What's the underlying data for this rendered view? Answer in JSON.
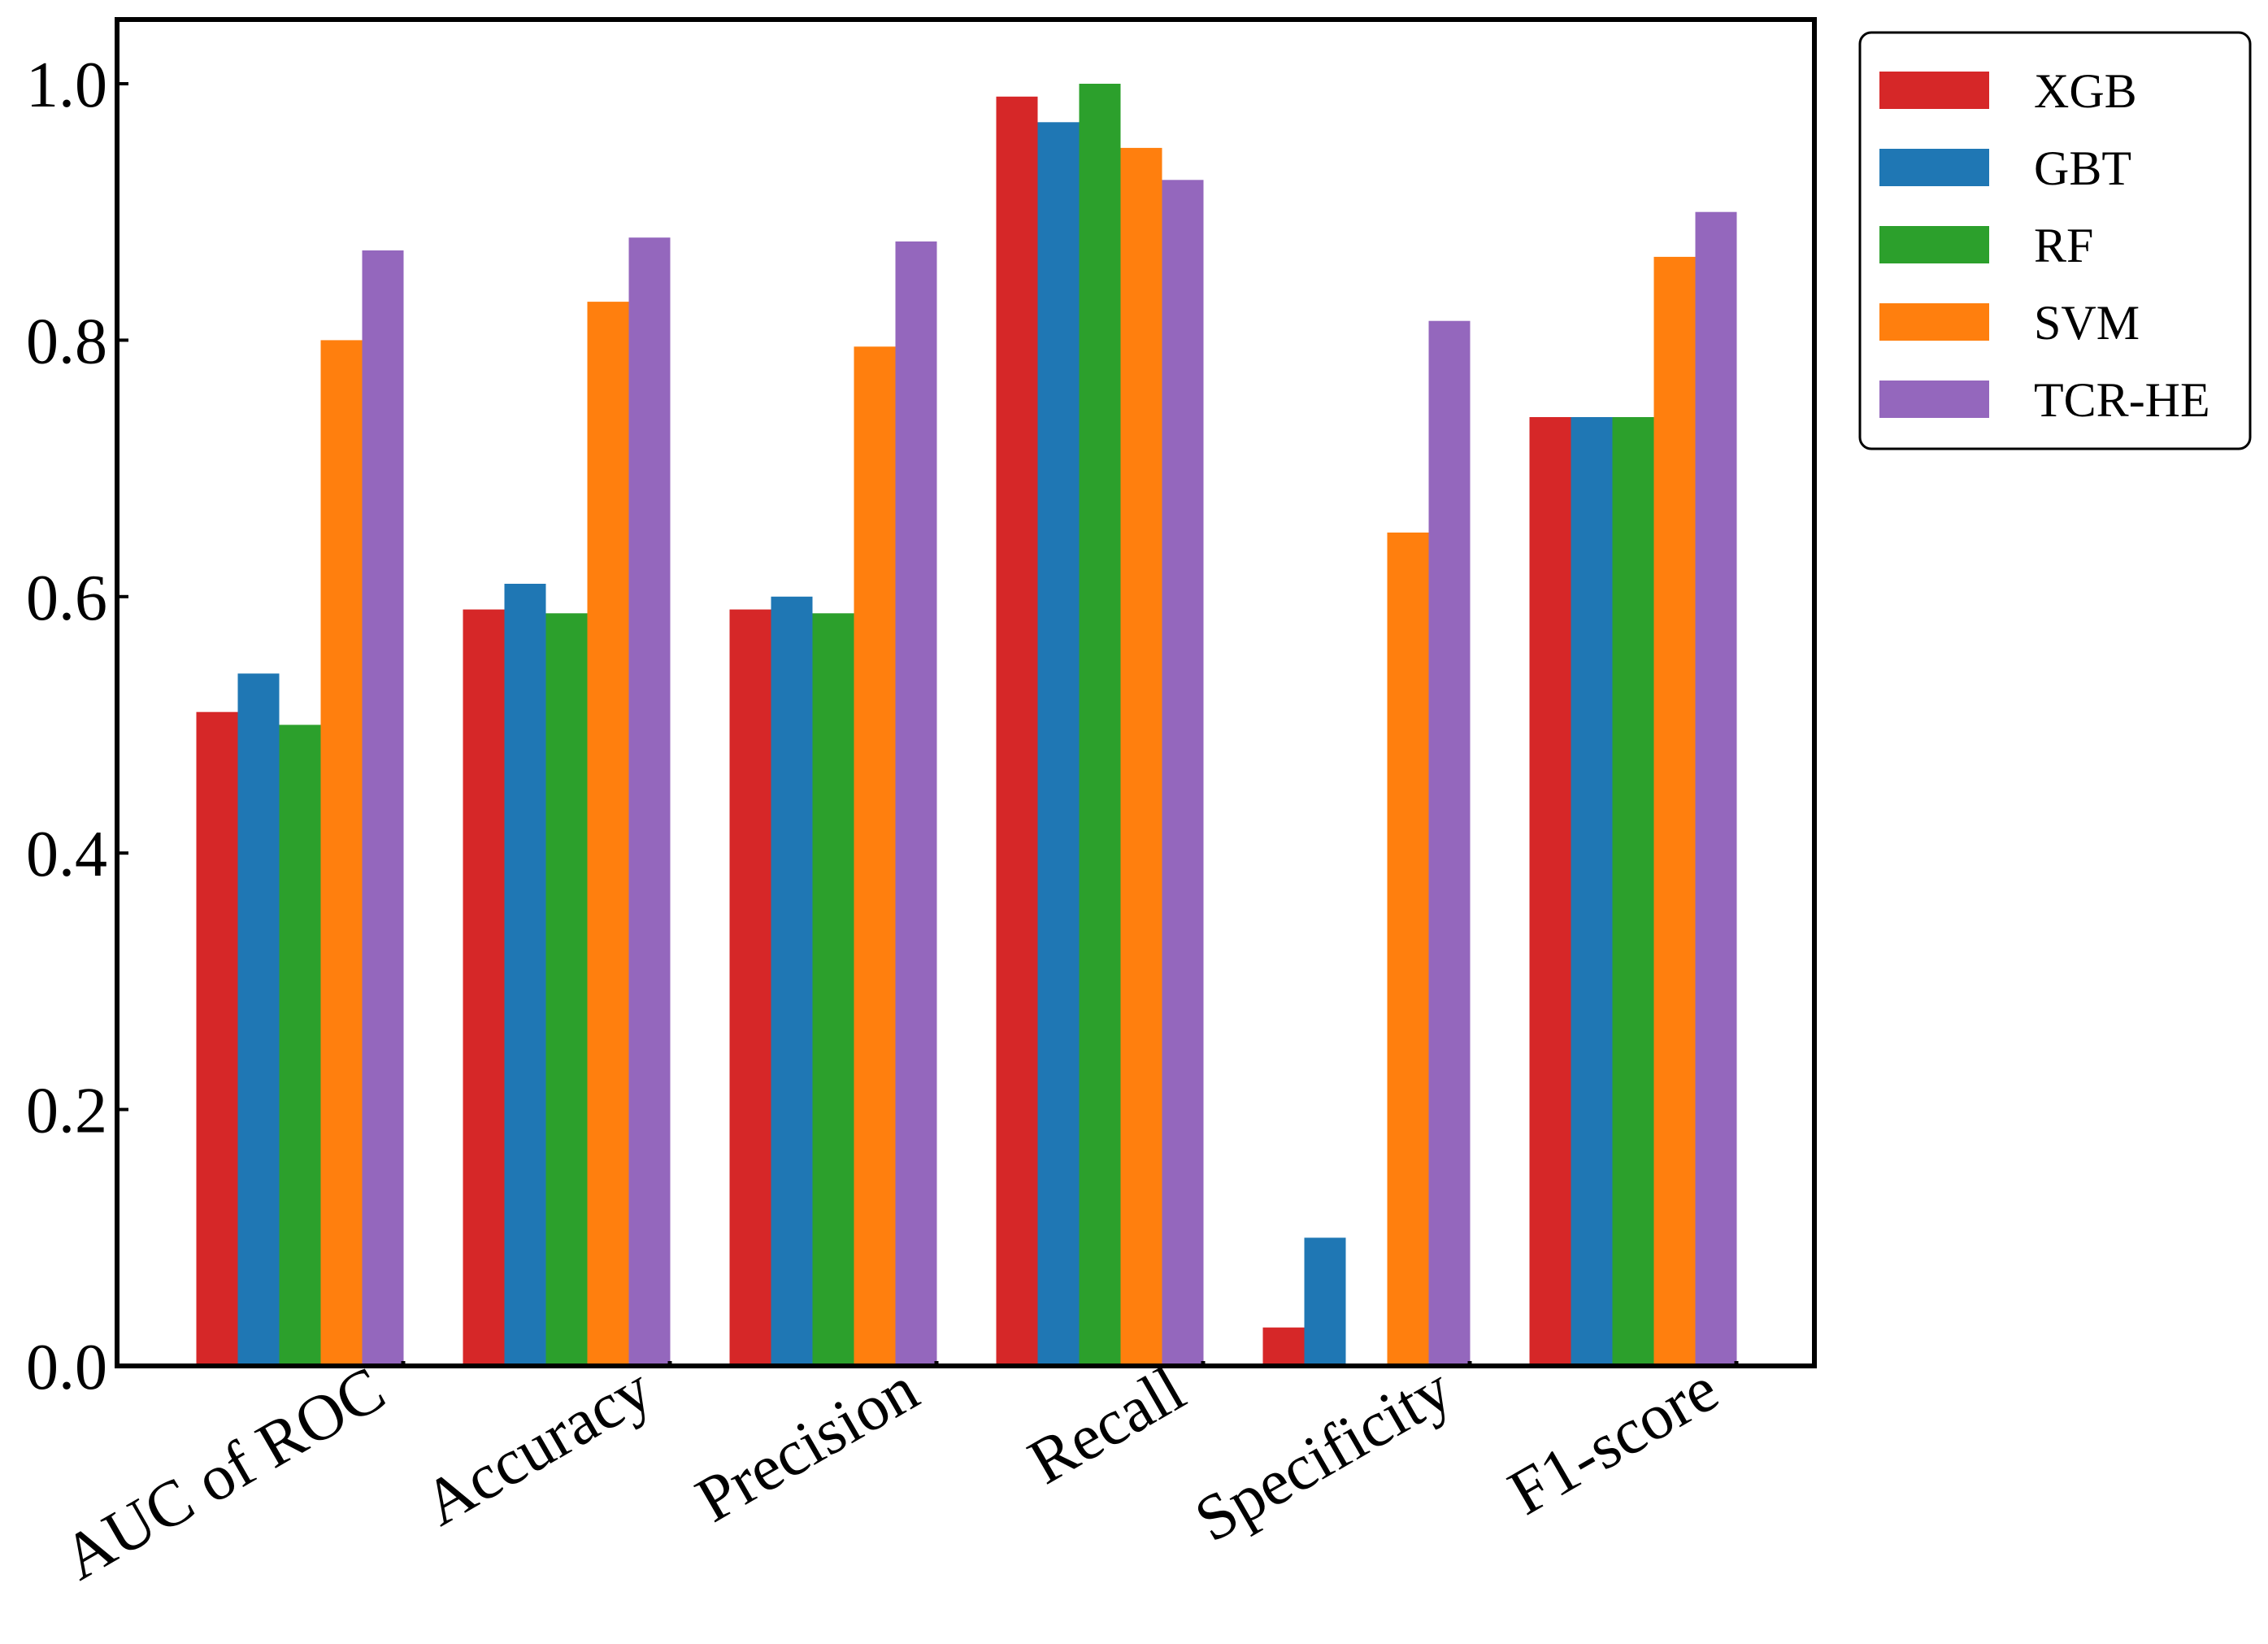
{
  "chart_data": {
    "type": "bar",
    "categories": [
      "AUC of ROC",
      "Accuracy",
      "Precision",
      "Recall",
      "Specificity",
      "F1-score"
    ],
    "series": [
      {
        "name": "XGB",
        "color": "#d62728",
        "values": [
          0.51,
          0.59,
          0.59,
          0.99,
          0.03,
          0.74
        ]
      },
      {
        "name": "GBT",
        "color": "#1f77b4",
        "values": [
          0.54,
          0.61,
          0.6,
          0.97,
          0.1,
          0.74
        ]
      },
      {
        "name": "RF",
        "color": "#2ca02c",
        "values": [
          0.5,
          0.587,
          0.587,
          1.0,
          0.0,
          0.74
        ]
      },
      {
        "name": "SVM",
        "color": "#ff7f0e",
        "values": [
          0.8,
          0.83,
          0.795,
          0.95,
          0.65,
          0.865
        ]
      },
      {
        "name": "TCR-HE",
        "color": "#9467bd",
        "values": [
          0.87,
          0.88,
          0.877,
          0.925,
          0.815,
          0.9
        ]
      }
    ],
    "title": "",
    "xlabel": "",
    "ylabel": "",
    "ylim": [
      0,
      1.0
    ],
    "yticks": [
      "0.0",
      "0.2",
      "0.4",
      "0.6",
      "0.8",
      "1.0"
    ],
    "grid": false,
    "legend_position": "outside-top-right"
  }
}
